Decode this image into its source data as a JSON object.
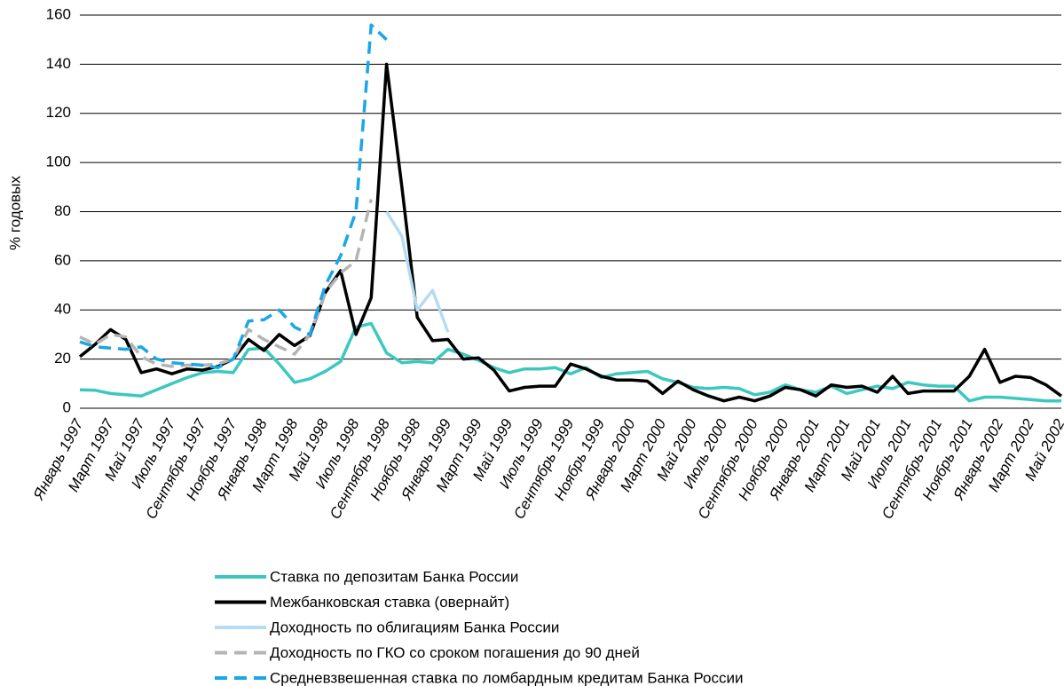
{
  "chart_data": {
    "type": "line",
    "y_label": "% годовых",
    "categories": [
      "Январь 1997",
      null,
      "Март 1997",
      null,
      "Май 1997",
      null,
      "Июль 1997",
      null,
      "Сентябрь 1997",
      null,
      "Ноябрь 1997",
      null,
      "Январь 1998",
      null,
      "Март 1998",
      null,
      "Май 1998",
      null,
      "Июль 1998",
      null,
      "Сентябрь 1998",
      null,
      "Ноябрь 1998",
      null,
      "Январь 1999",
      null,
      "Март 1999",
      null,
      "Май 1999",
      null,
      "Июль 1999",
      null,
      "Сентябрь 1999",
      null,
      "Ноябрь 1999",
      null,
      "Январь 2000",
      null,
      "Март 2000",
      null,
      "Май 2000",
      null,
      "Июль 2000",
      null,
      "Сентябрь 2000",
      null,
      "Ноябрь 2000",
      null,
      "Январь 2001",
      null,
      "Март 2001",
      null,
      "Май 2001",
      null,
      "Июль 2001",
      null,
      "Сентябрь 2001",
      null,
      "Ноябрь 2001",
      null,
      "Январь 2002",
      null,
      "Март 2002",
      null,
      "Май 2002"
    ],
    "series": [
      {
        "name": "Ставка по депозитам Банка России",
        "color": "#3cc8c0",
        "dashed": false,
        "values": [
          7.5,
          7.3,
          6,
          5.5,
          5,
          7.5,
          10,
          12.5,
          14.5,
          15,
          14.5,
          24,
          24.5,
          18,
          10.5,
          12,
          15,
          19,
          33,
          34.5,
          22.5,
          18.5,
          19,
          18.5,
          24,
          22,
          19.5,
          16.5,
          14.5,
          16,
          16,
          16.5,
          14,
          16.5,
          12.5,
          14,
          14.5,
          15,
          12,
          10.5,
          8.5,
          8,
          8.5,
          8,
          5.5,
          6.5,
          9.5,
          7.5,
          6.5,
          9,
          6,
          7.5,
          9,
          8,
          10.5,
          9.5,
          9,
          9,
          3,
          4.5,
          4.5,
          4,
          3.5,
          3,
          3
        ]
      },
      {
        "name": "Межбанковская ставка (овернайт)",
        "color": "#000000",
        "dashed": false,
        "values": [
          21,
          26,
          32,
          28,
          14.5,
          16,
          14,
          16,
          15.5,
          17,
          20,
          28,
          23.5,
          30,
          25.5,
          29.5,
          47,
          56,
          30,
          45,
          140,
          90,
          37,
          27.5,
          28,
          20,
          20.5,
          15.5,
          7,
          8.5,
          9,
          9,
          18,
          16,
          13,
          11.5,
          11.5,
          11,
          6,
          11,
          7.5,
          5,
          3,
          4.5,
          3,
          5,
          8.5,
          7.5,
          5,
          9.5,
          8.5,
          9,
          6.5,
          13,
          6,
          7,
          7,
          7,
          13,
          24,
          10.5,
          13,
          12.5,
          9.5,
          5
        ]
      },
      {
        "name": "Доходность по облигациям Банка России",
        "color": "#b5dcf2",
        "dashed": false,
        "values": [
          null,
          null,
          null,
          null,
          null,
          null,
          null,
          null,
          null,
          null,
          null,
          null,
          null,
          null,
          null,
          null,
          null,
          null,
          null,
          null,
          80,
          70,
          40,
          48,
          31,
          null,
          null,
          null,
          null,
          null,
          null,
          null,
          null,
          null,
          null,
          null,
          null,
          null,
          null,
          null,
          null,
          null,
          null,
          null,
          null,
          null,
          null,
          null,
          null,
          null,
          null,
          null,
          null,
          null,
          null,
          null,
          null,
          null,
          null,
          null,
          null,
          null,
          null,
          null,
          null
        ]
      },
      {
        "name": "Доходность по ГКО со сроком погашения до 90 дней",
        "color": "#b4b4b4",
        "dashed": true,
        "values": [
          29,
          26,
          30,
          29,
          21,
          18,
          17,
          17.5,
          17.5,
          18,
          20,
          32,
          28,
          25,
          22,
          30,
          47,
          55,
          60,
          85,
          null,
          null,
          null,
          null,
          null,
          null,
          null,
          null,
          null,
          null,
          null,
          null,
          null,
          null,
          null,
          null,
          null,
          null,
          null,
          null,
          null,
          null,
          null,
          null,
          null,
          null,
          null,
          null,
          null,
          null,
          null,
          null,
          null,
          null,
          null,
          null,
          null,
          null,
          null,
          null,
          null,
          null,
          null,
          null,
          null
        ]
      },
      {
        "name": "Средневзвешенная ставка по ломбардным кредитам Банка России",
        "color": "#1ba6e6",
        "dashed": true,
        "values": [
          27,
          25,
          24.5,
          24,
          25,
          20,
          18.5,
          18,
          17.5,
          16.5,
          20,
          35.5,
          36,
          40,
          33,
          30,
          50,
          62,
          80,
          156,
          150,
          null,
          null,
          null,
          null,
          null,
          null,
          null,
          null,
          null,
          null,
          null,
          null,
          null,
          null,
          null,
          null,
          null,
          null,
          null,
          null,
          null,
          null,
          null,
          null,
          null,
          null,
          null,
          null,
          null,
          null,
          null,
          null,
          null,
          null,
          null,
          null,
          null,
          null,
          null,
          null,
          null,
          null,
          null,
          null
        ]
      }
    ],
    "ylim": [
      0,
      160
    ],
    "yticks": [
      0,
      20,
      40,
      60,
      80,
      100,
      120,
      140,
      160
    ],
    "grid": true
  }
}
